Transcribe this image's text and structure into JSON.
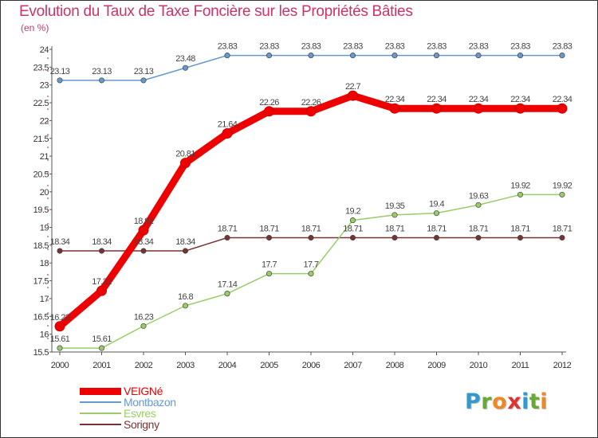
{
  "header": {
    "title": "Evolution du Taux de Taxe Foncière sur les Propriétés Bâties",
    "subtitle": "(en %)"
  },
  "logo": {
    "text": "Proxiti",
    "letters": [
      {
        "ch": "P",
        "color": "#3399cc"
      },
      {
        "ch": "r",
        "color": "#66aa33"
      },
      {
        "ch": "o",
        "color": "#ee8822"
      },
      {
        "ch": "x",
        "color": "#dd3333"
      },
      {
        "ch": "i",
        "color": "#3399cc"
      },
      {
        "ch": "t",
        "color": "#66aa33"
      },
      {
        "ch": "i",
        "color": "#ee8822"
      }
    ]
  },
  "chart_data": {
    "type": "line",
    "title": "Evolution du Taux de Taxe Foncière sur les Propriétés Bâties",
    "ylabel": "(en %)",
    "xlabel": "",
    "x": [
      "2000",
      "2001",
      "2002",
      "2003",
      "2004",
      "2005",
      "2006",
      "2007",
      "2008",
      "2009",
      "2010",
      "2011",
      "2012"
    ],
    "ylim": [
      15.5,
      24
    ],
    "yticks": [
      "15.5",
      "16",
      "16.5",
      "17",
      "17.5",
      "18",
      "18.5",
      "19",
      "19.5",
      "20",
      "20.5",
      "21",
      "21.5",
      "22",
      "22.5",
      "23",
      "23.5",
      "24"
    ],
    "grid": false,
    "legend_position": "bottom-left",
    "series": [
      {
        "name": "VEIGNé",
        "color": "#ee0000",
        "values": [
          16.22,
          17.22,
          18.92,
          20.81,
          21.64,
          22.26,
          22.26,
          22.7,
          22.34,
          22.34,
          22.34,
          22.34,
          22.34
        ],
        "labels": [
          "16.22",
          "17.22",
          "18.92",
          "20.81",
          "21.64",
          "22.26",
          "22.26",
          "22.7",
          "22.34",
          "22.34",
          "22.34",
          "22.34",
          "22.34"
        ]
      },
      {
        "name": "Montbazon",
        "color": "#6699cc",
        "values": [
          23.13,
          23.13,
          23.13,
          23.48,
          23.83,
          23.83,
          23.83,
          23.83,
          23.83,
          23.83,
          23.83,
          23.83,
          23.83
        ],
        "labels": [
          "23.13",
          "23.13",
          "23.13",
          "23.48",
          "23.83",
          "23.83",
          "23.83",
          "23.83",
          "23.83",
          "23.83",
          "23.83",
          "23.83",
          "23.83"
        ]
      },
      {
        "name": "Esvres",
        "color": "#99cc66",
        "values": [
          15.61,
          15.61,
          16.23,
          16.8,
          17.14,
          17.7,
          17.7,
          19.2,
          19.35,
          19.4,
          19.63,
          19.92,
          19.92
        ],
        "labels": [
          "15.61",
          "15.61",
          "16.23",
          "16.8",
          "17.14",
          "17.7",
          "17.7",
          "19.2",
          "19.35",
          "19.4",
          "19.63",
          "19.92",
          "19.92"
        ]
      },
      {
        "name": "Sorigny",
        "color": "#773333",
        "values": [
          18.34,
          18.34,
          18.34,
          18.34,
          18.71,
          18.71,
          18.71,
          18.71,
          18.71,
          18.71,
          18.71,
          18.71,
          18.71
        ],
        "labels": [
          "18.34",
          "18.34",
          "18.34",
          "18.34",
          "18.71",
          "18.71",
          "18.71",
          "18.71",
          "18.71",
          "18.71",
          "18.71",
          "18.71",
          "18.71"
        ]
      }
    ]
  }
}
